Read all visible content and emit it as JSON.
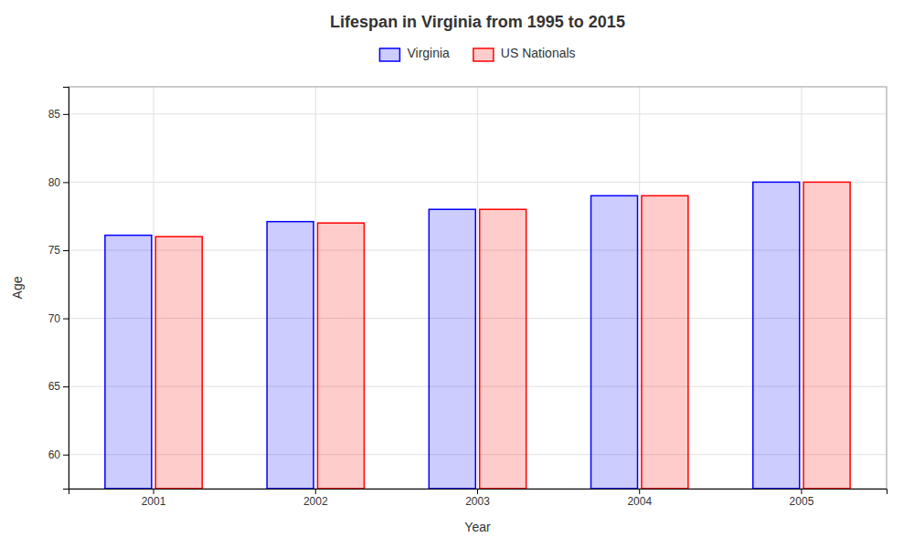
{
  "chart_data": {
    "type": "bar",
    "title": "Lifespan in Virginia from 1995 to 2015",
    "x_label": "Year",
    "y_label": "Age",
    "categories": [
      "2001",
      "2002",
      "2003",
      "2004",
      "2005"
    ],
    "series": [
      {
        "name": "Virginia",
        "color": "#0000ff",
        "values": [
          76.1,
          77.1,
          78.0,
          79.0,
          80.0
        ]
      },
      {
        "name": "US Nationals",
        "color": "#ff0000",
        "values": [
          76.0,
          77.0,
          78.0,
          79.0,
          80.0
        ]
      }
    ],
    "ylim": [
      57.5,
      87
    ],
    "yticks": [
      60,
      65,
      70,
      75,
      80,
      85
    ],
    "grid": true,
    "legend": "top"
  }
}
